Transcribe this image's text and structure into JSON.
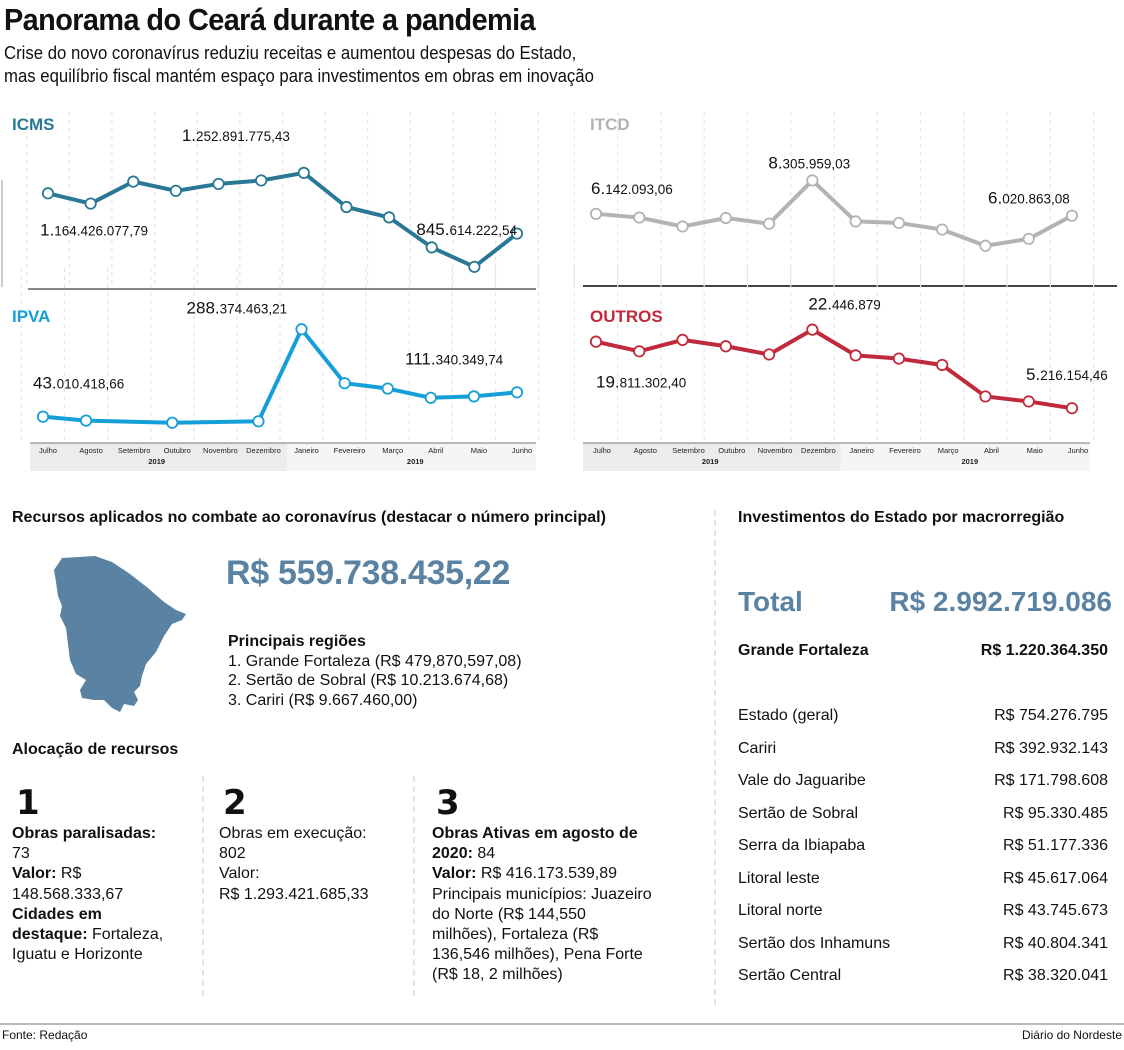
{
  "header": {
    "title": "Panorama do Ceará durante a pandemia",
    "subtitle_line1": "Crise do novo coronavírus reduziu receitas e aumentou despesas do Estado,",
    "subtitle_line2": "mas equilíbrio fiscal mantém espaço para investimentos em obras em inovação"
  },
  "chart_data": [
    {
      "type": "line",
      "title": "ICMS",
      "color": "#2a7896",
      "categories": [
        "Julho",
        "Agosto",
        "Setembro",
        "Outubro",
        "Novembro",
        "Dezembro",
        "Janeiro",
        "Fevereiro",
        "Março",
        "Abril",
        "Maio",
        "Junho"
      ],
      "year_labels": [
        "2019",
        "2019"
      ],
      "values": [
        1164426077.79,
        1120000000,
        1215000000,
        1175000000,
        1205000000,
        1220000000,
        1252891775.43,
        1105000000,
        1060000000,
        930000000,
        845614222.54,
        990000000
      ],
      "ylim": [
        780000000,
        1300000000
      ],
      "annotations": [
        {
          "index": 0,
          "big": "1.",
          "small": "164.426.077,79",
          "position": "below"
        },
        {
          "index": 6,
          "big": "1.",
          "small": "252.891.775,43",
          "position": "above"
        },
        {
          "index": 10,
          "big": "845.",
          "small": "614.222,54",
          "position": "above"
        }
      ],
      "grid": "vertical-dashed"
    },
    {
      "type": "line",
      "title": "ITCD",
      "color": "#b3b3b3",
      "categories": [
        "Julho",
        "Agosto",
        "Setembro",
        "Outubro",
        "Novembro",
        "Dezembro",
        "Janeiro",
        "Fevereiro",
        "Março",
        "Abril",
        "Maio",
        "Junho"
      ],
      "year_labels": [
        "2019",
        "2019"
      ],
      "values": [
        6142093.06,
        5900000,
        5320000,
        5870000,
        5500000,
        8305959.03,
        5650000,
        5550000,
        5120000,
        4070000,
        4520000,
        6020863.08
      ],
      "ylim": [
        2500000,
        9500000
      ],
      "annotations": [
        {
          "index": 0,
          "big": "6.",
          "small": "142.093,06",
          "position": "above"
        },
        {
          "index": 5,
          "big": "8.",
          "small": "305.959,03",
          "position": "above"
        },
        {
          "index": 11,
          "big": "6.",
          "small": "020.863,08",
          "position": "above"
        }
      ],
      "grid": "vertical-dashed"
    },
    {
      "type": "line",
      "title": "IPVA",
      "color": "#159fd8",
      "categories": [
        "Julho",
        "Agosto",
        "Setembro",
        "Outubro",
        "Novembro",
        "Dezembro",
        "Janeiro",
        "Fevereiro",
        "Março",
        "Abril",
        "Maio",
        "Junho"
      ],
      "year_labels": [
        "2019",
        "2019"
      ],
      "values": [
        43010418.66,
        32000000,
        null,
        26000000,
        null,
        30000000,
        288374463.21,
        137000000,
        122000000,
        96000000,
        100000000,
        111340349.74
      ],
      "ylim": [
        0,
        320000000
      ],
      "annotations": [
        {
          "index": 0,
          "big": "43.",
          "small": "010.418,66",
          "position": "above"
        },
        {
          "index": 6,
          "big": "288.",
          "small": "374.463,21",
          "position": "above"
        },
        {
          "index": 11,
          "big": "111.",
          "small": "340.349,74",
          "position": "above"
        }
      ],
      "grid": "vertical-dashed"
    },
    {
      "type": "line",
      "title": "OUTROS",
      "color": "#c02a3c",
      "categories": [
        "Julho",
        "Agosto",
        "Setembro",
        "Outubro",
        "Novembro",
        "Dezembro",
        "Janeiro",
        "Fevereiro",
        "Março",
        "Abril",
        "Maio",
        "Junho"
      ],
      "year_labels": [
        "2019",
        "2019"
      ],
      "values": [
        19811302.4,
        17700000,
        20200000,
        18800000,
        17000000,
        22446879,
        16800000,
        16100000,
        14700000,
        7800000,
        6700000,
        5216154.46
      ],
      "ylim": [
        0,
        25000000
      ],
      "annotations": [
        {
          "index": 0,
          "big": "19.",
          "small": "811.302,40",
          "position": "below"
        },
        {
          "index": 5,
          "big": "22.",
          "small": "446.879",
          "position": "above"
        },
        {
          "index": 11,
          "big": "5.",
          "small": "216.154,46",
          "position": "above"
        }
      ],
      "grid": "vertical-dashed"
    }
  ],
  "covid": {
    "title": "Recursos aplicados no combate ao coronavírus (destacar o número principal)",
    "total": "R$ 559.738.435,22",
    "map_color": "#5a82a3",
    "regions_title": "Principais regiões",
    "regions": [
      "1. Grande Fortaleza (R$ 479,870,597,08)",
      "2. Sertão de Sobral (R$ 10.213.674,68)",
      "3. Cariri (R$ 9.667.460,00)"
    ]
  },
  "allocation": {
    "title": "Alocação de recursos",
    "items": [
      {
        "number": "1",
        "lines": [
          {
            "bold": "Obras paralisadas:",
            "text": ""
          },
          {
            "bold": "",
            "text": "73"
          },
          {
            "bold": "Valor:",
            "text": " R$"
          },
          {
            "bold": "",
            "text": "148.568.333,67"
          },
          {
            "bold": "Cidades em",
            "text": ""
          },
          {
            "bold": "destaque:",
            "text": " Fortaleza,"
          },
          {
            "bold": "",
            "text": "Iguatu e Horizonte"
          }
        ]
      },
      {
        "number": "2",
        "lines": [
          {
            "bold": "",
            "text": "Obras em execução:"
          },
          {
            "bold": "",
            "text": "802"
          },
          {
            "bold": "",
            "text": "Valor:"
          },
          {
            "bold": "",
            "text": "R$ 1.293.421.685,33"
          }
        ]
      },
      {
        "number": "3",
        "lines": [
          {
            "bold": "Obras Ativas em agosto de",
            "text": ""
          },
          {
            "bold": "2020:",
            "text": " 84"
          },
          {
            "bold": "Valor:",
            "text": " R$ 416.173.539,89"
          },
          {
            "bold": "",
            "text": "Principais municípios: Juazeiro"
          },
          {
            "bold": "",
            "text": "do Norte (R$ 144,550"
          },
          {
            "bold": "",
            "text": "milhões), Fortaleza (R$"
          },
          {
            "bold": "",
            "text": "136,546 milhões), Pena Forte"
          },
          {
            "bold": "",
            "text": "(R$ 18, 2 milhões)"
          }
        ]
      }
    ]
  },
  "investments": {
    "title": "Investimentos do Estado por macrorregião",
    "total_label": "Total",
    "total_value": "R$ 2.992.719.086",
    "highlight": {
      "name": "Grande Fortaleza",
      "value": "R$ 1.220.364.350"
    },
    "rows": [
      {
        "name": "Estado (geral)",
        "value": "R$ 754.276.795"
      },
      {
        "name": "Cariri",
        "value": "R$ 392.932.143"
      },
      {
        "name": "Vale do Jaguaribe",
        "value": "R$ 171.798.608"
      },
      {
        "name": "Sertão de Sobral",
        "value": "R$ 95.330.485"
      },
      {
        "name": "Serra da Ibiapaba",
        "value": "R$ 51.177.336"
      },
      {
        "name": "Litoral leste",
        "value": "R$ 45.617.064"
      },
      {
        "name": "Litoral norte",
        "value": "R$ 43.745.673"
      },
      {
        "name": "Sertão dos Inhamuns",
        "value": "R$ 40.804.341"
      },
      {
        "name": "Sertão Central",
        "value": "R$ 38.320.041"
      }
    ]
  },
  "footer": {
    "source": "Fonte: Redação",
    "publisher": "Diário do Nordeste"
  }
}
